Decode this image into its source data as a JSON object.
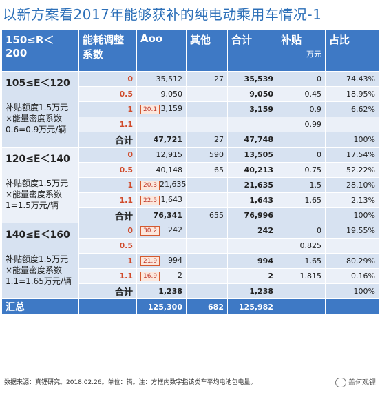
{
  "title": "以新方案看2017年能够获补的纯电动乘用车情况-1",
  "header": {
    "range": "150≤R＜200",
    "coef": "能耗调整系数",
    "a00": "Aoo",
    "other": "其他",
    "total": "合计",
    "subsidy": "补贴",
    "subsidy_unit": "万元",
    "share": "占比"
  },
  "groups": [
    {
      "title": "105≤E＜120",
      "note": "补贴额度1.5万元×能量密度系数0.6=0.9万元/辆",
      "rows": [
        {
          "coef": "0",
          "box": "",
          "a00": "35,512",
          "other": "27",
          "total": "35,539",
          "subsidy": "0",
          "share": "74.43%"
        },
        {
          "coef": "0.5",
          "box": "",
          "a00": "9,050",
          "other": "",
          "total": "9,050",
          "subsidy": "0.45",
          "share": "18.95%"
        },
        {
          "coef": "1",
          "box": "20.1",
          "a00": "3,159",
          "other": "",
          "total": "3,159",
          "subsidy": "0.9",
          "share": "6.62%"
        },
        {
          "coef": "1.1",
          "box": "",
          "a00": "",
          "other": "",
          "total": "",
          "subsidy": "0.99",
          "share": ""
        },
        {
          "coef": "合计",
          "box": "",
          "a00": "47,721",
          "other": "27",
          "total": "47,748",
          "subsidy": "",
          "share": "100%"
        }
      ]
    },
    {
      "title": "120≤E＜140",
      "note": "补贴额度1.5万元×能量密度系数1=1.5万元/辆",
      "rows": [
        {
          "coef": "0",
          "box": "",
          "a00": "12,915",
          "other": "590",
          "total": "13,505",
          "subsidy": "0",
          "share": "17.54%"
        },
        {
          "coef": "0.5",
          "box": "",
          "a00": "40,148",
          "other": "65",
          "total": "40,213",
          "subsidy": "0.75",
          "share": "52.22%"
        },
        {
          "coef": "1",
          "box": "20.3",
          "a00": "21,635",
          "other": "",
          "total": "21,635",
          "subsidy": "1.5",
          "share": "28.10%"
        },
        {
          "coef": "1.1",
          "box": "22.5",
          "a00": "1,643",
          "other": "",
          "total": "1,643",
          "subsidy": "1.65",
          "share": "2.13%"
        },
        {
          "coef": "合计",
          "box": "",
          "a00": "76,341",
          "other": "655",
          "total": "76,996",
          "subsidy": "",
          "share": "100%"
        }
      ]
    },
    {
      "title": "140≤E＜160",
      "note": "补贴额度1.5万元×能量密度系数1.1=1.65万元/辆",
      "rows": [
        {
          "coef": "0",
          "box": "30.2",
          "a00": "242",
          "other": "",
          "total": "242",
          "subsidy": "0",
          "share": "19.55%"
        },
        {
          "coef": "0.5",
          "box": "",
          "a00": "",
          "other": "",
          "total": "",
          "subsidy": "0.825",
          "share": ""
        },
        {
          "coef": "1",
          "box": "21.9",
          "a00": "994",
          "other": "",
          "total": "994",
          "subsidy": "1.65",
          "share": "80.29%"
        },
        {
          "coef": "1.1",
          "box": "16.9",
          "a00": "2",
          "other": "",
          "total": "2",
          "subsidy": "1.815",
          "share": "0.16%"
        },
        {
          "coef": "合计",
          "box": "",
          "a00": "1,238",
          "other": "",
          "total": "1,238",
          "subsidy": "",
          "share": "100%"
        }
      ]
    }
  ],
  "summary": {
    "label": "汇总",
    "a00": "125,300",
    "other": "682",
    "total": "125,982"
  },
  "footnote": "数据来源：真锂研究。2018.02.26。单位：辆。注：方框内数字指该类车平均电池包电量。",
  "brand": "盖何观锂"
}
